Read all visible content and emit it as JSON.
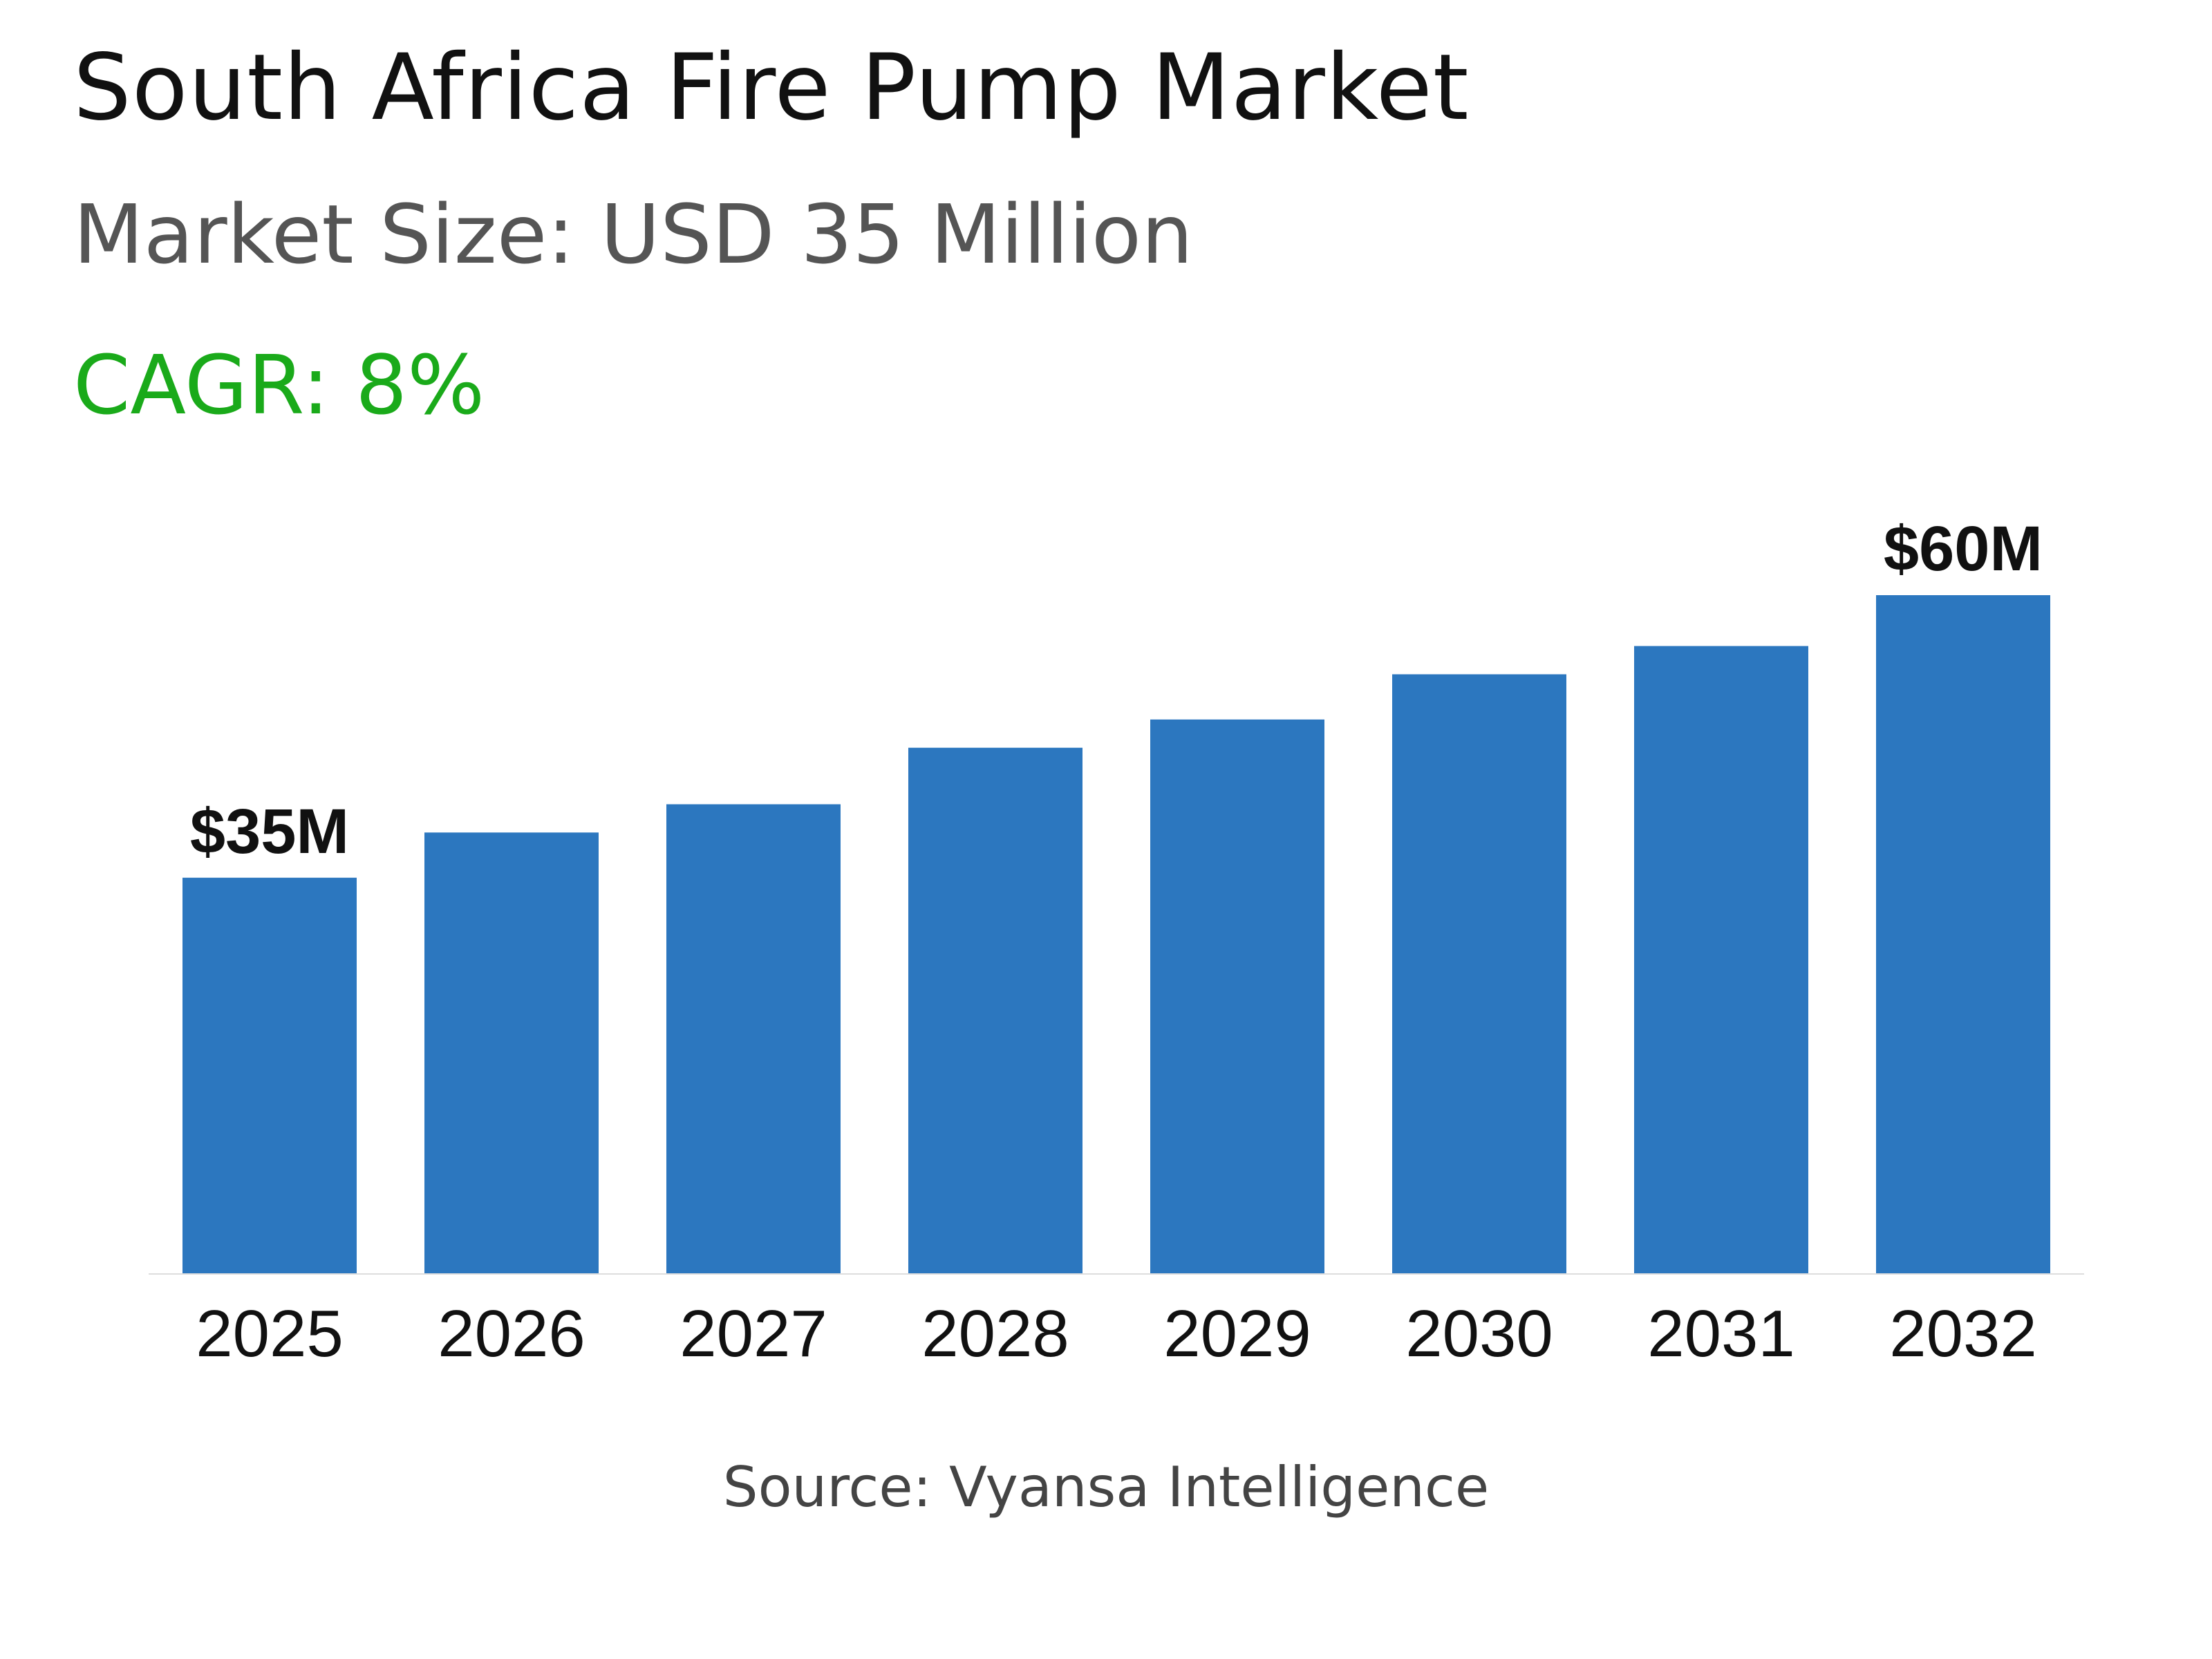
{
  "header": {
    "title": "South Africa Fire Pump Market",
    "market_size": "Market Size: USD 35 Million",
    "cagr": "CAGR: 8%"
  },
  "footer": {
    "source": "Source: Vyansa Intelligence"
  },
  "colors": {
    "bar": "#2c77bf",
    "cagr": "#1aaa1a",
    "axis": "#dddddd"
  },
  "chart_data": {
    "type": "bar",
    "categories": [
      "2025",
      "2026",
      "2027",
      "2028",
      "2029",
      "2030",
      "2031",
      "2032"
    ],
    "values": [
      35,
      39,
      41.5,
      46.5,
      49,
      53,
      55.5,
      60
    ],
    "data_labels": [
      "$35M",
      "",
      "",
      "",
      "",
      "",
      "",
      "$60M"
    ],
    "ylim": [
      0,
      60
    ],
    "grid": false,
    "legend": "none"
  }
}
